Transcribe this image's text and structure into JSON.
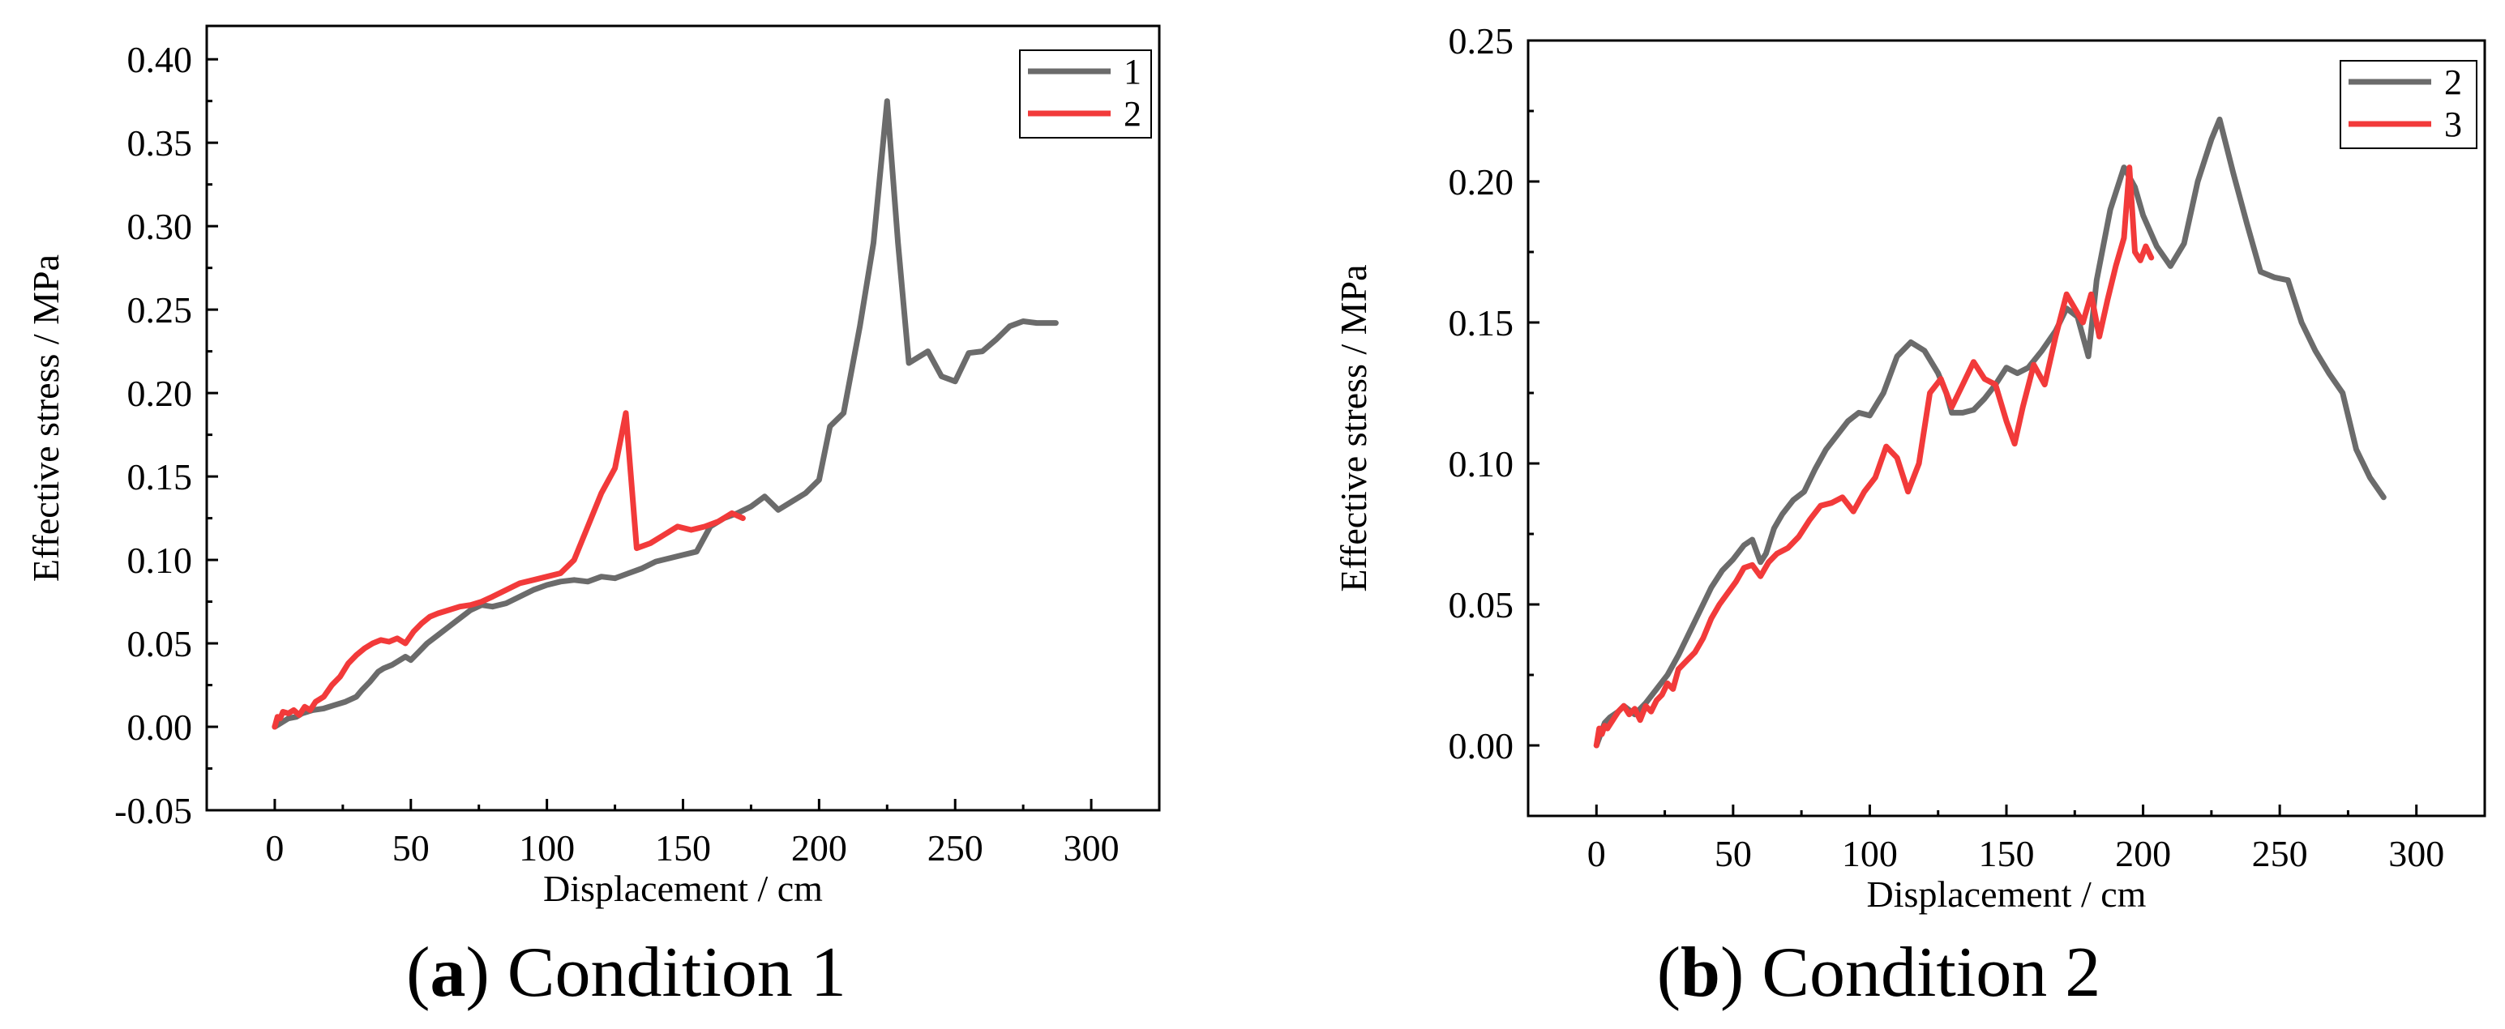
{
  "chart_data": [
    {
      "type": "line",
      "panel_label": "a",
      "caption": "Condition 1",
      "xlabel": "Displacement / cm",
      "ylabel": "Effective stress / MPa",
      "xlim": [
        -25,
        325
      ],
      "ylim": [
        -0.05,
        0.42
      ],
      "xticks": [
        0,
        50,
        100,
        150,
        200,
        250,
        300
      ],
      "xtick_labels": [
        "0",
        "50",
        "100",
        "150",
        "200",
        "250",
        "300"
      ],
      "yticks": [
        -0.05,
        0.0,
        0.05,
        0.1,
        0.15,
        0.2,
        0.25,
        0.3,
        0.35,
        0.4
      ],
      "ytick_labels": [
        "-0.05",
        "0.00",
        "0.05",
        "0.10",
        "0.15",
        "0.20",
        "0.25",
        "0.30",
        "0.35",
        "0.40"
      ],
      "legend_position": "top-right",
      "series": [
        {
          "name": "1",
          "color": "#6b6b6b",
          "x": [
            0,
            3,
            5,
            8,
            10,
            14,
            18,
            22,
            26,
            30,
            32,
            35,
            38,
            40,
            43,
            46,
            48,
            50,
            53,
            56,
            60,
            64,
            68,
            72,
            76,
            80,
            85,
            90,
            95,
            100,
            105,
            110,
            115,
            120,
            125,
            130,
            135,
            140,
            145,
            150,
            155,
            160,
            165,
            170,
            175,
            180,
            185,
            190,
            195,
            200,
            204,
            209,
            215,
            220,
            225,
            229,
            233,
            237,
            240,
            245,
            250,
            255,
            260,
            265,
            270,
            275,
            280,
            287
          ],
          "y": [
            0.0,
            0.003,
            0.005,
            0.006,
            0.008,
            0.01,
            0.011,
            0.013,
            0.015,
            0.018,
            0.022,
            0.027,
            0.033,
            0.035,
            0.037,
            0.04,
            0.042,
            0.04,
            0.045,
            0.05,
            0.055,
            0.06,
            0.065,
            0.07,
            0.073,
            0.072,
            0.074,
            0.078,
            0.082,
            0.085,
            0.087,
            0.088,
            0.087,
            0.09,
            0.089,
            0.092,
            0.095,
            0.099,
            0.101,
            0.103,
            0.105,
            0.12,
            0.125,
            0.128,
            0.132,
            0.138,
            0.13,
            0.135,
            0.14,
            0.148,
            0.18,
            0.188,
            0.24,
            0.29,
            0.375,
            0.29,
            0.218,
            0.222,
            0.225,
            0.21,
            0.207,
            0.224,
            0.225,
            0.232,
            0.24,
            0.243,
            0.242,
            0.242
          ]
        },
        {
          "name": "2",
          "color": "#f23a3a",
          "x": [
            0,
            1,
            2,
            3,
            5,
            7,
            9,
            11,
            13,
            15,
            18,
            21,
            24,
            27,
            30,
            33,
            36,
            39,
            42,
            45,
            48,
            51,
            54,
            57,
            60,
            64,
            68,
            72,
            76,
            80,
            85,
            90,
            95,
            100,
            105,
            110,
            115,
            120,
            125,
            129,
            133,
            138,
            143,
            148,
            153,
            158,
            163,
            168,
            172
          ],
          "y": [
            0.0,
            0.006,
            0.005,
            0.009,
            0.008,
            0.01,
            0.007,
            0.012,
            0.01,
            0.015,
            0.018,
            0.025,
            0.03,
            0.038,
            0.043,
            0.047,
            0.05,
            0.052,
            0.051,
            0.053,
            0.05,
            0.057,
            0.062,
            0.066,
            0.068,
            0.07,
            0.072,
            0.073,
            0.075,
            0.078,
            0.082,
            0.086,
            0.088,
            0.09,
            0.092,
            0.1,
            0.12,
            0.14,
            0.155,
            0.188,
            0.107,
            0.11,
            0.115,
            0.12,
            0.118,
            0.12,
            0.123,
            0.128,
            0.125
          ]
        }
      ]
    },
    {
      "type": "line",
      "panel_label": "b",
      "caption": "Condition 2",
      "xlabel": "Displacement / cm",
      "ylabel": "Effective stress / MPa",
      "xlim": [
        -25,
        325
      ],
      "ylim": [
        -0.025,
        0.25
      ],
      "xticks": [
        0,
        50,
        100,
        150,
        200,
        250,
        300
      ],
      "xtick_labels": [
        "0",
        "50",
        "100",
        "150",
        "200",
        "250",
        "300"
      ],
      "yticks": [
        0.0,
        0.05,
        0.1,
        0.15,
        0.2,
        0.25
      ],
      "ytick_labels": [
        "0.00",
        "0.05",
        "0.10",
        "0.15",
        "0.20",
        "0.25"
      ],
      "legend_position": "top-right",
      "series": [
        {
          "name": "2",
          "color": "#6b6b6b",
          "x": [
            0,
            3,
            5,
            8,
            10,
            14,
            18,
            22,
            26,
            30,
            34,
            38,
            42,
            46,
            50,
            54,
            57,
            60,
            62,
            65,
            68,
            72,
            76,
            80,
            84,
            88,
            92,
            96,
            100,
            105,
            110,
            115,
            120,
            125,
            128,
            130,
            134,
            138,
            142,
            146,
            150,
            154,
            158,
            163,
            168,
            172,
            176,
            180,
            183,
            188,
            193,
            197,
            200,
            205,
            210,
            215,
            220,
            225,
            228,
            233,
            238,
            243,
            248,
            253,
            258,
            263,
            268,
            273,
            278,
            283,
            288
          ],
          "y": [
            0.0,
            0.008,
            0.01,
            0.012,
            0.014,
            0.011,
            0.015,
            0.02,
            0.025,
            0.032,
            0.04,
            0.048,
            0.056,
            0.062,
            0.066,
            0.071,
            0.073,
            0.065,
            0.068,
            0.077,
            0.082,
            0.087,
            0.09,
            0.098,
            0.105,
            0.11,
            0.115,
            0.118,
            0.117,
            0.125,
            0.138,
            0.143,
            0.14,
            0.132,
            0.125,
            0.118,
            0.118,
            0.119,
            0.123,
            0.128,
            0.134,
            0.132,
            0.134,
            0.14,
            0.147,
            0.155,
            0.152,
            0.138,
            0.165,
            0.19,
            0.205,
            0.198,
            0.188,
            0.177,
            0.17,
            0.178,
            0.2,
            0.215,
            0.222,
            0.203,
            0.185,
            0.168,
            0.166,
            0.165,
            0.15,
            0.14,
            0.132,
            0.125,
            0.105,
            0.095,
            0.088
          ]
        },
        {
          "name": "3",
          "color": "#f23a3a",
          "x": [
            0,
            1,
            2,
            3,
            4,
            6,
            8,
            10,
            12,
            14,
            16,
            18,
            20,
            22,
            24,
            26,
            28,
            30,
            33,
            36,
            39,
            42,
            45,
            48,
            51,
            54,
            57,
            60,
            63,
            66,
            70,
            74,
            78,
            82,
            86,
            90,
            94,
            98,
            102,
            106,
            110,
            114,
            118,
            122,
            126,
            130,
            134,
            138,
            142,
            146,
            150,
            153,
            156,
            160,
            164,
            168,
            172,
            175,
            178,
            181,
            184,
            187,
            190,
            193,
            195,
            197,
            199,
            201,
            203
          ],
          "y": [
            0.0,
            0.006,
            0.004,
            0.007,
            0.006,
            0.009,
            0.012,
            0.014,
            0.011,
            0.013,
            0.009,
            0.014,
            0.012,
            0.016,
            0.018,
            0.022,
            0.02,
            0.027,
            0.03,
            0.033,
            0.038,
            0.045,
            0.05,
            0.054,
            0.058,
            0.063,
            0.064,
            0.06,
            0.065,
            0.068,
            0.07,
            0.074,
            0.08,
            0.085,
            0.086,
            0.088,
            0.083,
            0.09,
            0.095,
            0.106,
            0.102,
            0.09,
            0.1,
            0.125,
            0.13,
            0.12,
            0.128,
            0.136,
            0.13,
            0.128,
            0.115,
            0.107,
            0.12,
            0.135,
            0.128,
            0.145,
            0.16,
            0.155,
            0.15,
            0.16,
            0.145,
            0.158,
            0.17,
            0.18,
            0.205,
            0.175,
            0.172,
            0.177,
            0.173
          ]
        }
      ]
    }
  ]
}
